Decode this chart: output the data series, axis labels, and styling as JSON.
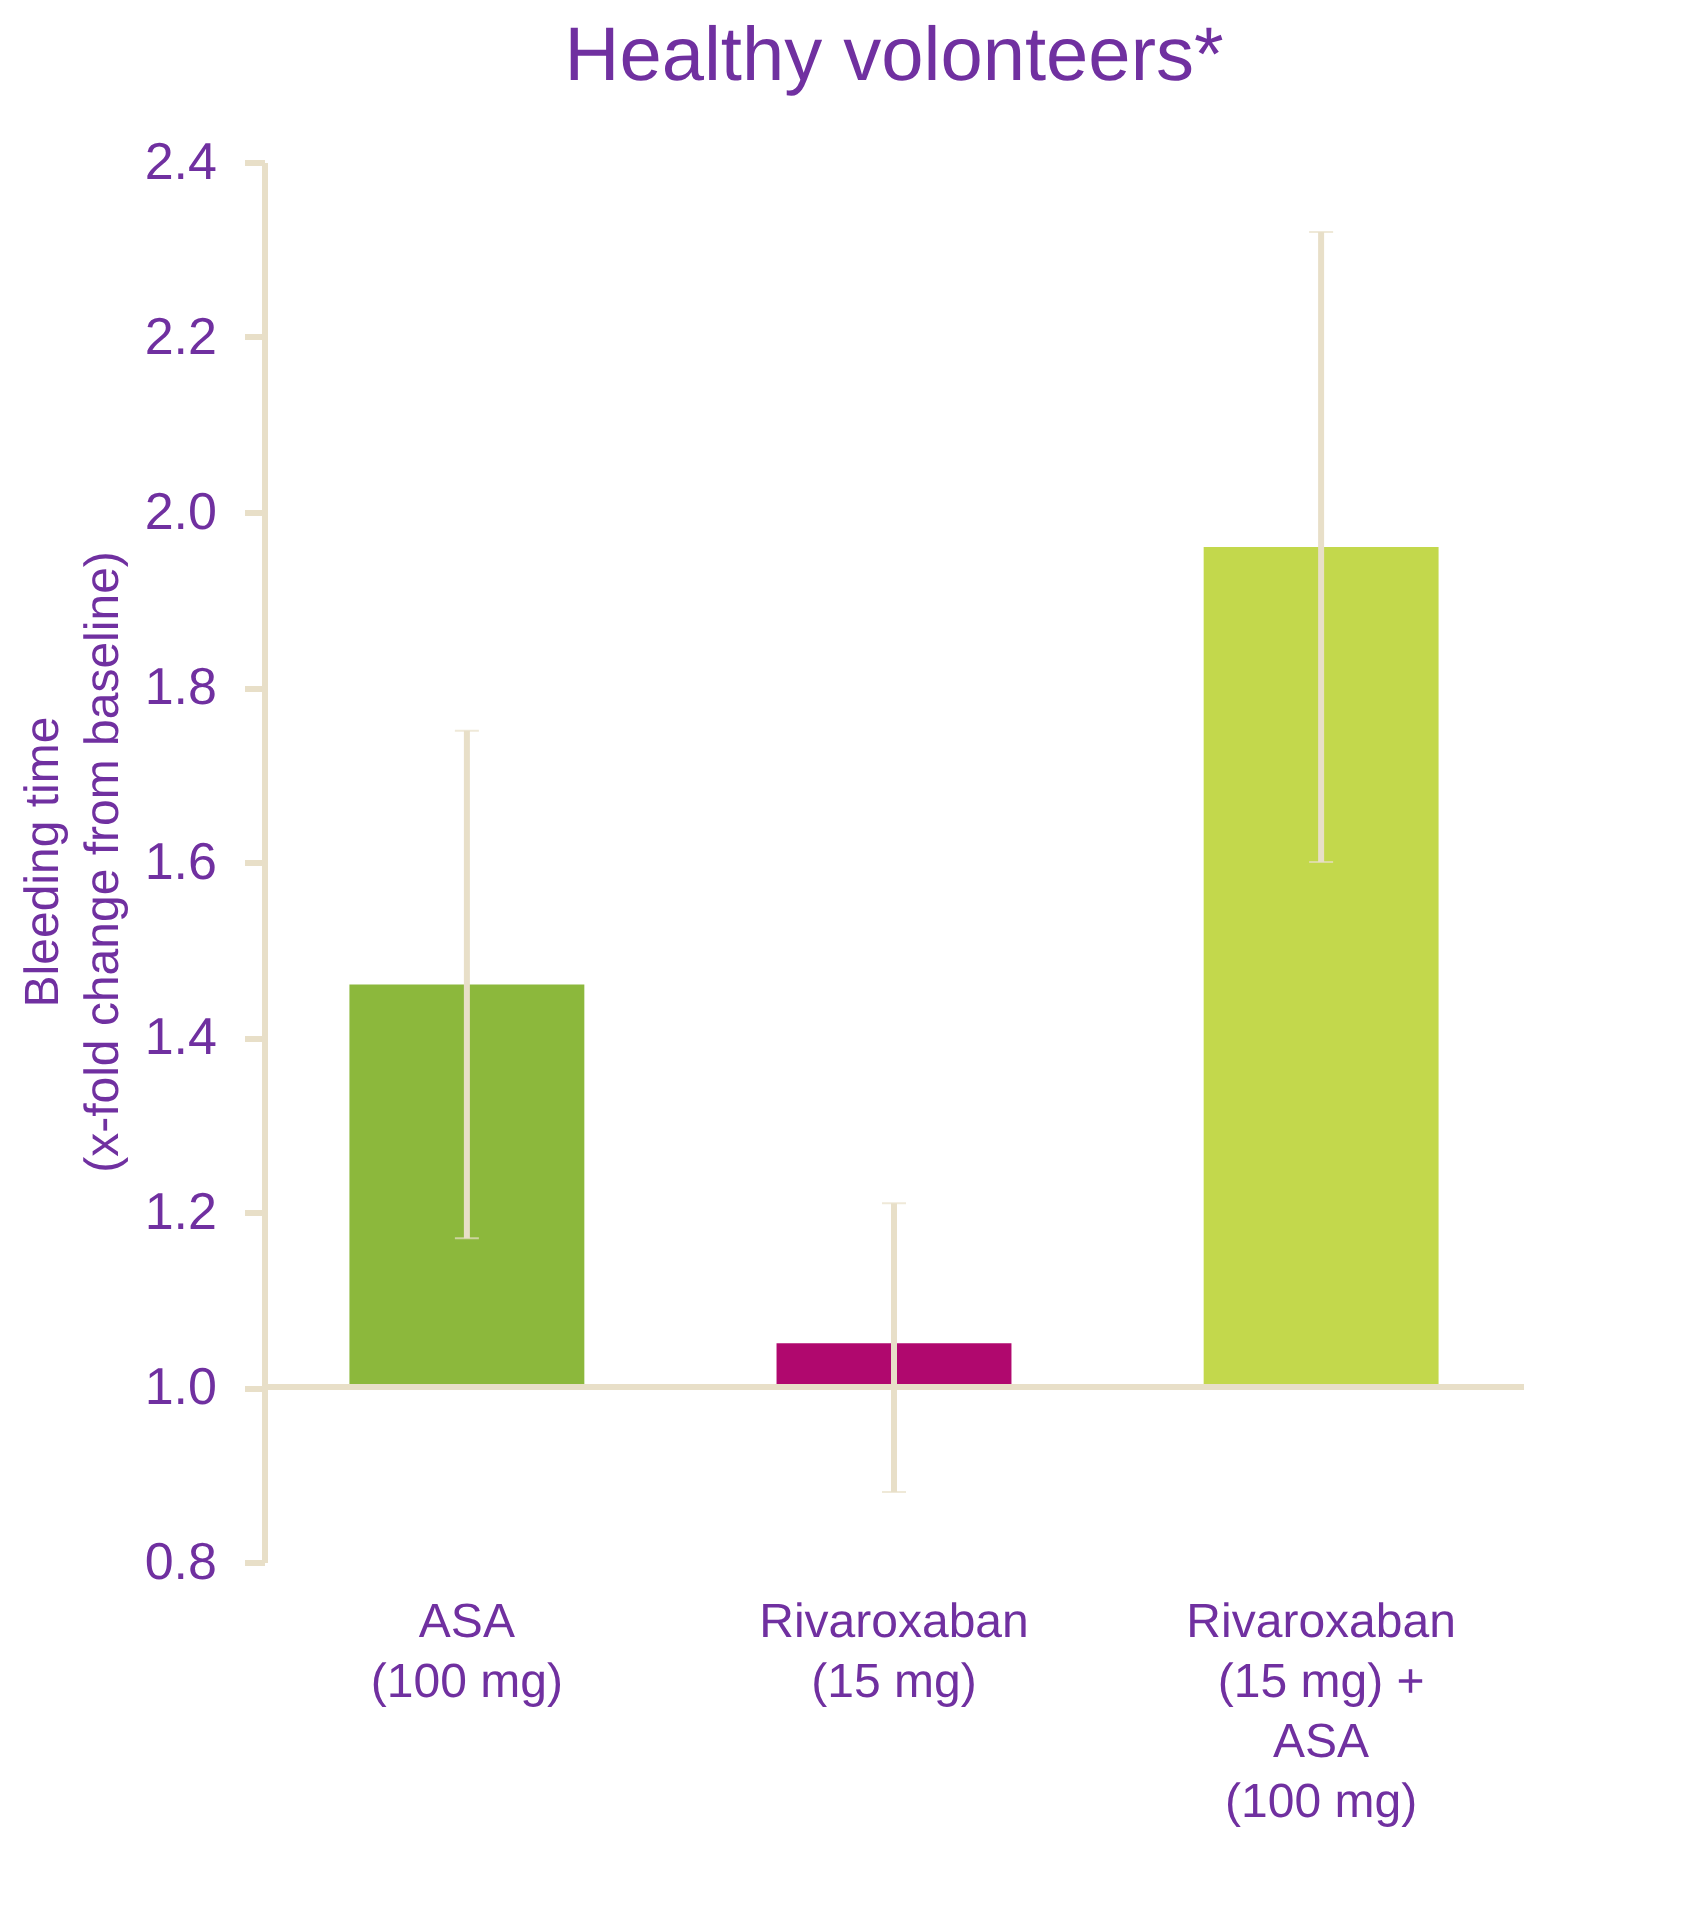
{
  "chart_data": {
    "type": "bar",
    "title": "Healthy volonteers*",
    "ylabel": "Bleeding time\n(x-fold change from baseline)",
    "categories": [
      "ASA\n(100 mg)",
      "Rivaroxaban\n(15 mg)",
      "Rivaroxaban\n(15 mg) +\nASA\n(100 mg)"
    ],
    "base": [
      1.0,
      1.0,
      1.0
    ],
    "values": [
      0.46,
      0.05,
      0.96
    ],
    "errors": [
      [
        1.17,
        1.75
      ],
      [
        0.88,
        1.21
      ],
      [
        1.6,
        2.32
      ]
    ],
    "colors": [
      "#8cb83c",
      "#b0086e",
      "#c3d84c"
    ],
    "ylim": [
      0.8,
      2.4
    ],
    "yticks": [
      0.8,
      {
        "value": 1,
        "label": "1.0"
      },
      1.2,
      1.4,
      1.6,
      1.8,
      {
        "value": 2,
        "label": "2.0"
      },
      2.2,
      2.4
    ],
    "ref_lines": [
      {
        "axis": "y",
        "value": 1.0,
        "color": "#e8dfc8"
      }
    ],
    "grid": false,
    "legend": false
  }
}
